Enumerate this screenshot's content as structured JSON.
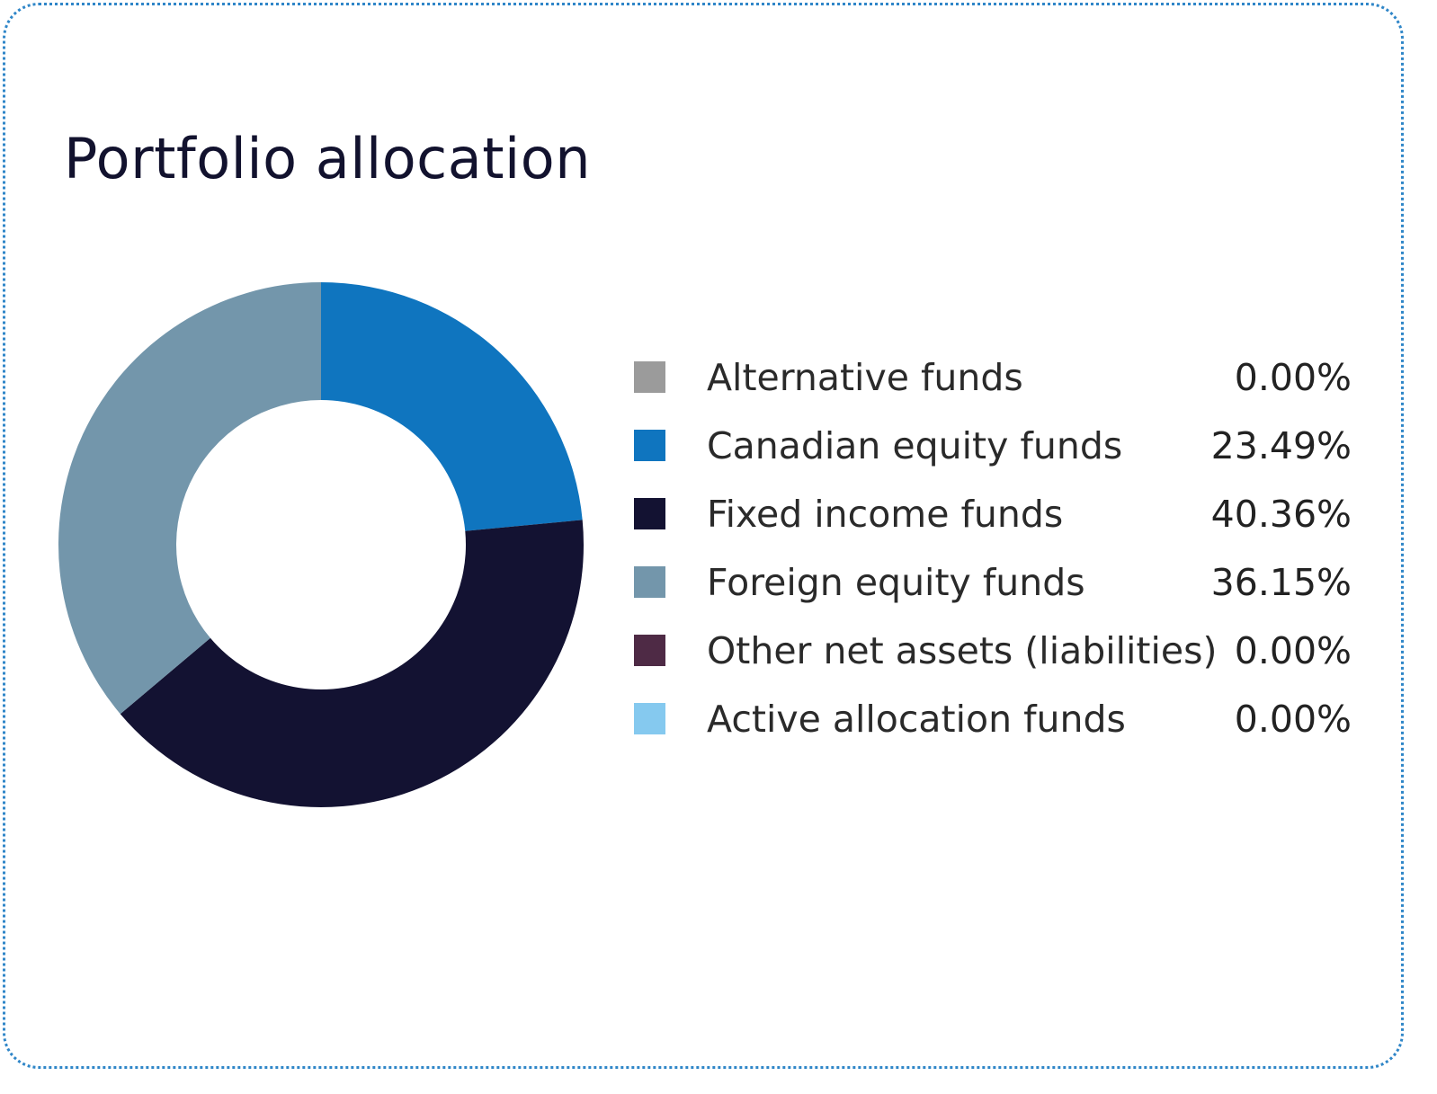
{
  "chart_data": {
    "type": "pie",
    "title": "Portfolio allocation",
    "legend_position": "right",
    "slices": [
      {
        "label": "Alternative funds",
        "value": 0.0,
        "value_label": "0.00%",
        "color": "#9b9b9b"
      },
      {
        "label": "Canadian equity funds",
        "value": 23.49,
        "value_label": "23.49%",
        "color": "#0f75bf"
      },
      {
        "label": "Fixed income funds",
        "value": 40.36,
        "value_label": "40.36%",
        "color": "#131232"
      },
      {
        "label": "Foreign equity funds",
        "value": 36.15,
        "value_label": "36.15%",
        "color": "#7396ab"
      },
      {
        "label": "Other net assets (liabilities)",
        "value": 0.0,
        "value_label": "0.00%",
        "color": "#4e2a45"
      },
      {
        "label": "Active allocation funds",
        "value": 0.0,
        "value_label": "0.00%",
        "color": "#85c9ef"
      }
    ]
  }
}
